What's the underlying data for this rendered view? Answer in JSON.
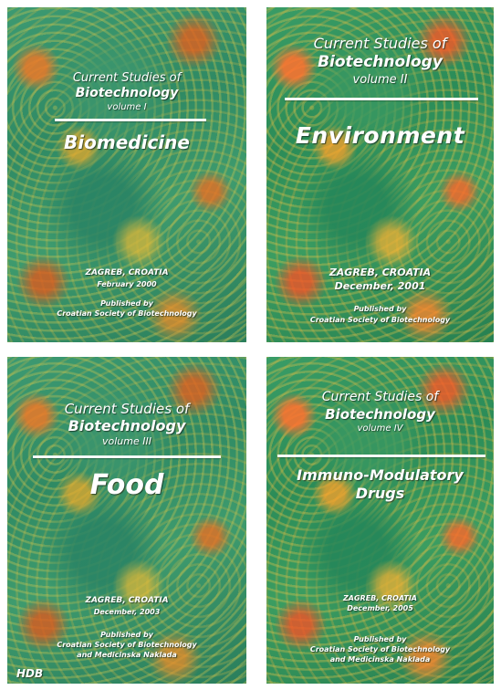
{
  "covers": [
    {
      "series_line1": "Current Studies of",
      "series_line2": "Biotechnology",
      "volume": "volume I",
      "title": "Biomedicine",
      "place": "ZAGREB, CROATIA",
      "date": "February 2000",
      "published_by": "Published by",
      "publisher": "Croatian Society of Biotechnology"
    },
    {
      "series_line1": "Current Studies of",
      "series_line2": "Biotechnology",
      "volume": "volume II",
      "title": "Environment",
      "place": "ZAGREB, CROATIA",
      "date": "December, 2001",
      "published_by": "Published by",
      "publisher": "Croatian Society of Biotechnology"
    },
    {
      "series_line1": "Current Studies of",
      "series_line2": "Biotechnology",
      "volume": "volume III",
      "title": "Food",
      "place": "ZAGREB, CROATIA",
      "date": "December, 2003",
      "published_by": "Published by",
      "publisher": "Croatian Society of Biotechnology",
      "publisher2": "and Medicinska Naklada",
      "logo": "HDB"
    },
    {
      "series_line1": "Current Studies of",
      "series_line2": "Biotechnology",
      "volume": "volume IV",
      "title_line1": "Immuno-Modulatory",
      "title_line2": "Drugs",
      "place": "ZAGREB, CROATIA",
      "date": "December, 2005",
      "published_by": "Published by",
      "publisher": "Croatian Society of Biotechnology",
      "publisher2": "and Medicinska Naklada"
    }
  ]
}
